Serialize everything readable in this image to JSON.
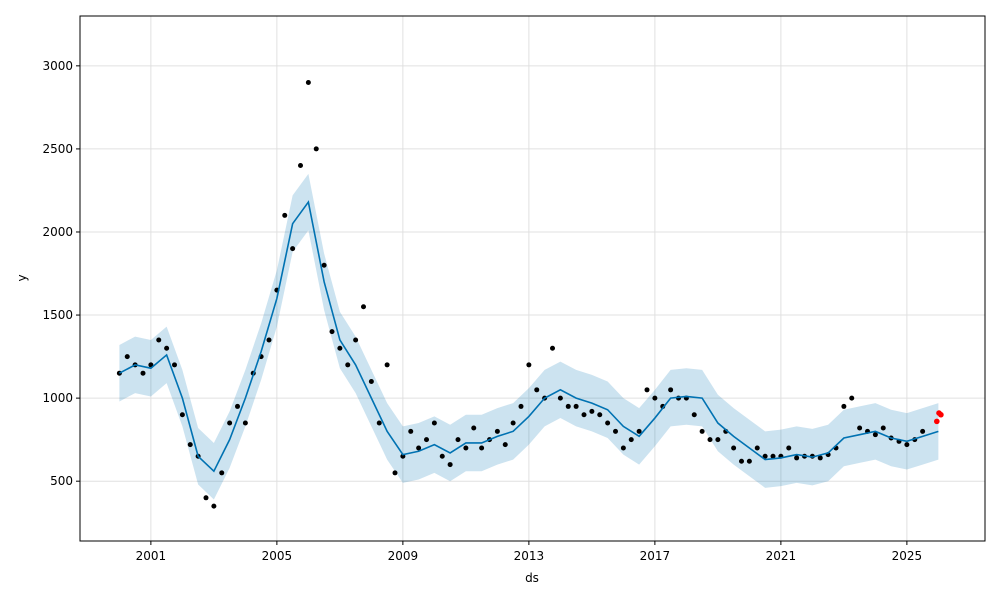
{
  "chart_data": {
    "type": "forecast",
    "xlabel": "ds",
    "ylabel": "y",
    "xlim": [
      1998.75,
      2027.48
    ],
    "ylim": [
      140,
      3300
    ],
    "xticks": [
      2001,
      2005,
      2009,
      2013,
      2017,
      2021,
      2025
    ],
    "yticks": [
      500,
      1000,
      1500,
      2000,
      2500,
      3000
    ],
    "grid": true,
    "observed": {
      "color": "#000000",
      "x": [
        2000,
        2000.25,
        2000.5,
        2000.75,
        2001,
        2001.25,
        2001.5,
        2001.75,
        2002,
        2002.25,
        2002.5,
        2002.75,
        2003,
        2003.25,
        2003.5,
        2003.75,
        2004,
        2004.25,
        2004.5,
        2004.75,
        2005,
        2005.25,
        2005.5,
        2005.75,
        2006,
        2006.25,
        2006.5,
        2006.75,
        2007,
        2007.25,
        2007.5,
        2007.75,
        2008,
        2008.25,
        2008.5,
        2008.75,
        2009,
        2009.25,
        2009.5,
        2009.75,
        2010,
        2010.25,
        2010.5,
        2010.75,
        2011,
        2011.25,
        2011.5,
        2011.75,
        2012,
        2012.25,
        2012.5,
        2012.75,
        2013,
        2013.25,
        2013.5,
        2013.75,
        2014,
        2014.25,
        2014.5,
        2014.75,
        2015,
        2015.25,
        2015.5,
        2015.75,
        2016,
        2016.25,
        2016.5,
        2016.75,
        2017,
        2017.25,
        2017.5,
        2017.75,
        2018,
        2018.25,
        2018.5,
        2018.75,
        2019,
        2019.25,
        2019.5,
        2019.75,
        2020,
        2020.25,
        2020.5,
        2020.75,
        2021,
        2021.25,
        2021.5,
        2021.75,
        2022,
        2022.25,
        2022.5,
        2022.75,
        2023,
        2023.25,
        2023.5,
        2023.75,
        2024,
        2024.25,
        2024.5,
        2024.75,
        2025,
        2025.25,
        2025.5
      ],
      "y": [
        1150,
        1250,
        1200,
        1150,
        1200,
        1350,
        1300,
        1200,
        900,
        720,
        650,
        400,
        350,
        550,
        850,
        950,
        850,
        1150,
        1250,
        1350,
        1650,
        2100,
        1900,
        2400,
        2900,
        2500,
        1800,
        1400,
        1300,
        1200,
        1350,
        1550,
        1100,
        850,
        1200,
        550,
        650,
        800,
        700,
        750,
        850,
        650,
        600,
        750,
        700,
        820,
        700,
        750,
        800,
        720,
        850,
        950,
        1200,
        1050,
        1000,
        1300,
        1000,
        950,
        950,
        900,
        920,
        900,
        850,
        800,
        700,
        750,
        800,
        1050,
        1000,
        950,
        1050,
        1000,
        1000,
        900,
        800,
        750,
        750,
        800,
        700,
        620,
        620,
        700,
        650,
        650,
        650,
        700,
        640,
        650,
        650,
        640,
        660,
        700,
        950,
        1000,
        820,
        800,
        780,
        820,
        760,
        740,
        720,
        750,
        800
      ]
    },
    "recent": {
      "color": "#ff0000",
      "x": [
        2025.95,
        2026.02,
        2026.08
      ],
      "y": [
        860,
        910,
        900
      ]
    },
    "forecast": {
      "color": "#0072b2",
      "x": [
        2000,
        2000.5,
        2001,
        2001.5,
        2002,
        2002.5,
        2003,
        2003.5,
        2004,
        2004.5,
        2005,
        2005.5,
        2006,
        2006.5,
        2007,
        2007.5,
        2008,
        2008.5,
        2009,
        2009.5,
        2010,
        2010.5,
        2011,
        2011.5,
        2012,
        2012.5,
        2013,
        2013.5,
        2014,
        2014.5,
        2015,
        2015.5,
        2016,
        2016.5,
        2017,
        2017.5,
        2018,
        2018.5,
        2019,
        2019.5,
        2020,
        2020.5,
        2021,
        2021.5,
        2022,
        2022.5,
        2023,
        2023.5,
        2024,
        2024.5,
        2025,
        2025.5,
        2026
      ],
      "values": [
        1150,
        1200,
        1180,
        1260,
        1000,
        650,
        560,
        750,
        1000,
        1280,
        1600,
        2050,
        2180,
        1700,
        1350,
        1200,
        1000,
        800,
        660,
        680,
        720,
        670,
        730,
        730,
        770,
        800,
        890,
        1000,
        1050,
        1000,
        970,
        930,
        830,
        770,
        880,
        1000,
        1010,
        1000,
        850,
        770,
        700,
        630,
        640,
        660,
        645,
        670,
        760,
        780,
        800,
        760,
        740,
        770,
        800
      ],
      "lower": [
        980,
        1030,
        1010,
        1090,
        830,
        480,
        390,
        580,
        830,
        1110,
        1430,
        1880,
        2010,
        1530,
        1180,
        1030,
        830,
        630,
        490,
        510,
        550,
        500,
        560,
        560,
        600,
        630,
        720,
        830,
        880,
        830,
        800,
        760,
        660,
        600,
        710,
        830,
        840,
        830,
        680,
        600,
        530,
        460,
        470,
        490,
        475,
        500,
        590,
        610,
        630,
        590,
        570,
        600,
        630
      ],
      "upper": [
        1320,
        1370,
        1350,
        1430,
        1170,
        820,
        730,
        920,
        1170,
        1450,
        1770,
        2220,
        2350,
        1870,
        1520,
        1370,
        1170,
        970,
        830,
        850,
        890,
        840,
        900,
        900,
        940,
        970,
        1060,
        1170,
        1220,
        1170,
        1140,
        1100,
        1000,
        940,
        1050,
        1170,
        1180,
        1170,
        1020,
        940,
        870,
        800,
        810,
        830,
        815,
        840,
        930,
        950,
        970,
        930,
        910,
        940,
        970
      ]
    }
  }
}
